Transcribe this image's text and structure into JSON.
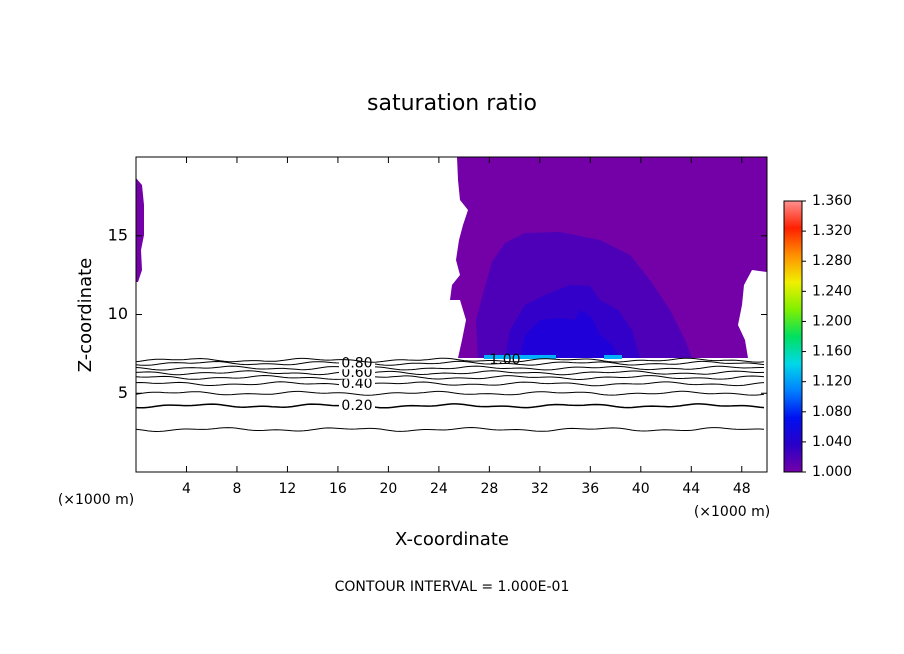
{
  "chart_data": {
    "type": "contour",
    "title": "saturation ratio",
    "x_label": "X-coordinate",
    "y_label": "Z-coordinate",
    "x_unit": "(×1000 m)",
    "y_unit": "(×1000 m)",
    "footer": "CONTOUR INTERVAL = 1.000E-01",
    "xlim": [
      0,
      50
    ],
    "xticks": [
      4,
      8,
      12,
      16,
      20,
      24,
      28,
      32,
      36,
      40,
      44,
      48
    ],
    "ylim": [
      0,
      20
    ],
    "yticks": [
      5,
      10,
      15
    ],
    "contours": [
      {
        "value": 0.1,
        "z": 2.7
      },
      {
        "value": 0.2,
        "label": "0.20",
        "z": 4.2
      },
      {
        "value": 0.3,
        "z": 5.0
      },
      {
        "value": 0.4,
        "label": "0.40",
        "z": 5.6
      },
      {
        "value": 0.5,
        "z": 6.0
      },
      {
        "value": 0.6,
        "label": "0.60",
        "z": 6.3
      },
      {
        "value": 0.7,
        "z": 6.6
      },
      {
        "value": 0.8,
        "label": "0.80",
        "z": 6.9
      },
      {
        "value": 1.0,
        "label": "1.00",
        "z": 7.1
      }
    ],
    "colorbar": {
      "lim": [
        1.0,
        1.36
      ],
      "colors": [
        "#7400a8",
        "#2a00c8",
        "#0010f0",
        "#0080ff",
        "#00d8e8",
        "#00e060",
        "#80f000",
        "#f0f000",
        "#ff9000",
        "#ff2000",
        "#ff9090"
      ],
      "ticks": [
        {
          "value": 1.0,
          "label": "1.000"
        },
        {
          "value": 1.04,
          "label": "1.040"
        },
        {
          "value": 1.08,
          "label": "1.080"
        },
        {
          "value": 1.12,
          "label": "1.120"
        },
        {
          "value": 1.16,
          "label": "1.160"
        },
        {
          "value": 1.2,
          "label": "1.200"
        },
        {
          "value": 1.24,
          "label": "1.240"
        },
        {
          "value": 1.28,
          "label": "1.280"
        },
        {
          "value": 1.32,
          "label": "1.320"
        },
        {
          "value": 1.36,
          "label": "1.360"
        }
      ]
    }
  }
}
